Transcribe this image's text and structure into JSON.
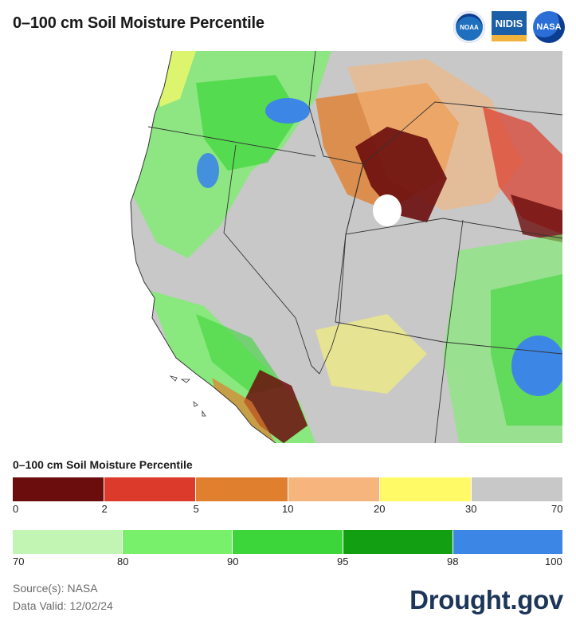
{
  "title": "0–100 cm Soil Moisture Percentile",
  "logos": [
    {
      "name": "noaa-logo",
      "text": "NOAA"
    },
    {
      "name": "nidis-logo",
      "text": "NIDIS"
    },
    {
      "name": "nasa-logo",
      "text": "NASA"
    }
  ],
  "legend": {
    "title": "0–100 cm Soil Moisture Percentile",
    "row1": {
      "colors": [
        "#6b0d0d",
        "#dc3a2a",
        "#e07f2e",
        "#f5b57c",
        "#fffa66",
        "#c8c8c8"
      ],
      "ticks": [
        "0",
        "2",
        "5",
        "10",
        "20",
        "30",
        "70"
      ]
    },
    "row2": {
      "colors": [
        "#c2f5b4",
        "#79f06b",
        "#3dd63a",
        "#12a012",
        "#3c86e6"
      ],
      "ticks": [
        "70",
        "80",
        "90",
        "95",
        "98",
        "100"
      ]
    }
  },
  "source": {
    "line1": "Source(s): NASA",
    "line2": "Data Valid: 12/02/24"
  },
  "brand": "Drought.gov"
}
